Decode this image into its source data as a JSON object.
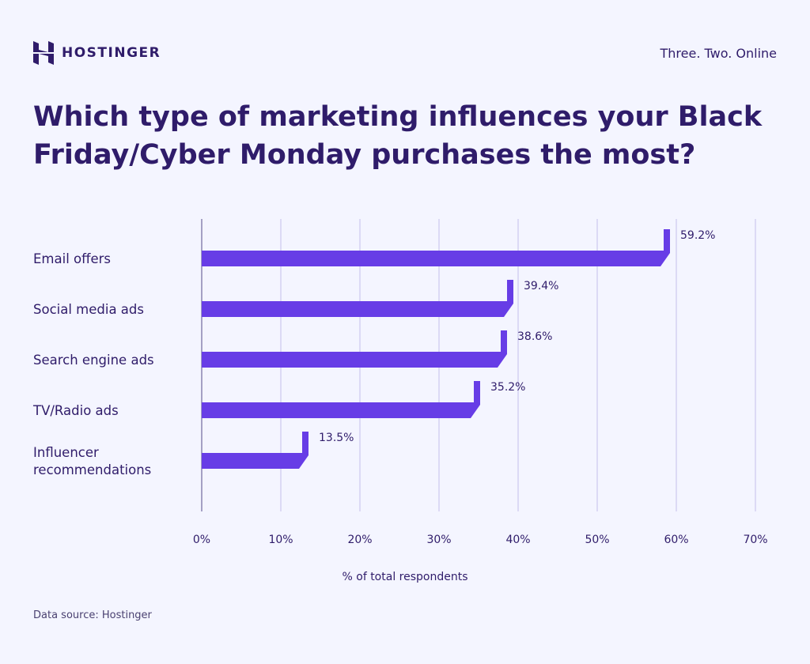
{
  "brand": {
    "name": "HOSTINGER",
    "tagline": "Three. Two. Online"
  },
  "footer": {
    "source": "Data source: Hostinger"
  },
  "colors": {
    "bar": "#673de6",
    "text": "#2f1c6a",
    "grid": "#dcdaf5",
    "background": "#f4f5ff"
  },
  "chart_data": {
    "type": "bar",
    "orientation": "horizontal",
    "title": "Which type of marketing influences your Black Friday/Cyber Monday purchases the most?",
    "categories": [
      "Email offers",
      "Social media ads",
      "Search engine ads",
      "TV/Radio ads",
      "Influencer recommendations"
    ],
    "values": [
      59.2,
      39.4,
      38.6,
      35.2,
      13.5
    ],
    "data_labels": [
      "59.2%",
      "39.4%",
      "38.6%",
      "35.2%",
      "13.5%"
    ],
    "xlabel": "% of total respondents",
    "ylabel": "",
    "xlim": [
      0,
      70
    ],
    "xticks": [
      "0%",
      "10%",
      "20%",
      "30%",
      "40%",
      "50%",
      "60%",
      "70%"
    ],
    "grid": true
  }
}
